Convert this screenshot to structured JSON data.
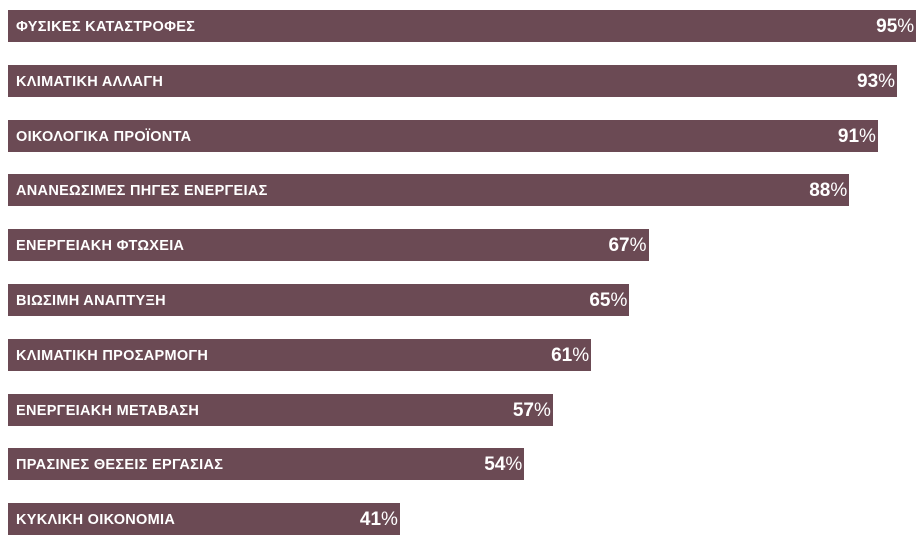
{
  "chart_data": {
    "type": "bar",
    "orientation": "horizontal",
    "categories": [
      "ΦΥΣΙΚΕΣ ΚΑΤΑΣΤΡΟΦΕΣ",
      "ΚΛΙΜΑΤΙΚΗ ΑΛΛΑΓΗ",
      "ΟΙΚΟΛΟΓΙΚΑ ΠΡΟΪΟΝΤΑ",
      "ΑΝΑΝΕΩΣΙΜΕΣ ΠΗΓΕΣ ΕΝΕΡΓΕΙΑΣ",
      "ΕΝΕΡΓΕΙΑΚΗ ΦΤΩΧΕΙΑ",
      "ΒΙΩΣΙΜΗ ΑΝΑΠΤΥΞΗ",
      "ΚΛΙΜΑΤΙΚΗ ΠΡΟΣΑΡΜΟΓΗ",
      "ΕΝΕΡΓΕΙΑΚΗ ΜΕΤΑΒΑΣΗ",
      "ΠΡΑΣΙΝΕΣ ΘΕΣΕΙΣ ΕΡΓΑΣΙΑΣ",
      "ΚΥΚΛΙΚΗ ΟΙΚΟΝΟΜΙΑ"
    ],
    "values": [
      95,
      93,
      91,
      88,
      67,
      65,
      61,
      57,
      54,
      41
    ],
    "value_unit": "%",
    "title": "",
    "xlabel": "",
    "ylabel": "",
    "grid": false,
    "bar_color": "#6b4a54",
    "label_color": "#ffffff"
  }
}
